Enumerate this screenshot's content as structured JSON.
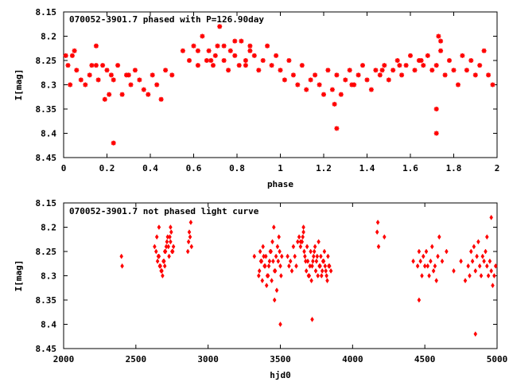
{
  "chart_data": [
    {
      "type": "scatter",
      "title": "070052-3901.7 phased with P=126.90day",
      "xlabel": "phase",
      "ylabel": "I[mag]",
      "xlim": [
        0,
        2
      ],
      "ylim": [
        8.15,
        8.45
      ],
      "y_inverted": true,
      "x_ticks": [
        0,
        0.2,
        0.4,
        0.6,
        0.8,
        1,
        1.2,
        1.4,
        1.6,
        1.8,
        2
      ],
      "x_tick_labels": [
        "0",
        "0.2",
        "0.4",
        "0.6",
        "0.8",
        "1",
        "1.2",
        "1.4",
        "1.6",
        "1.8",
        "2"
      ],
      "y_ticks": [
        8.15,
        8.2,
        8.25,
        8.3,
        8.35,
        8.4,
        8.45
      ],
      "y_tick_labels": [
        "8.15",
        "8.2",
        "8.25",
        "8.3",
        "8.35",
        "8.4",
        "8.45"
      ],
      "grid": false,
      "legend": "none",
      "marker": "star",
      "color": "#ff0000",
      "series": [
        {
          "x": [
            0.01,
            0.02,
            0.03,
            0.05,
            0.06,
            0.08,
            0.1,
            0.12,
            0.13,
            0.15,
            0.16,
            0.18,
            0.2,
            0.21,
            0.22,
            0.23,
            0.25,
            0.27,
            0.29,
            0.31,
            0.33,
            0.35,
            0.37,
            0.39,
            0.41,
            0.43,
            0.45,
            0.47,
            0.5,
            0.55,
            0.58,
            0.6,
            0.62,
            0.64,
            0.66,
            0.67,
            0.69,
            0.71,
            0.72,
            0.74,
            0.76,
            0.77,
            0.79,
            0.81,
            0.82,
            0.84,
            0.86,
            0.88,
            0.9,
            0.92,
            0.94,
            0.96,
            0.98,
            1.0,
            1.02,
            1.04,
            1.06,
            1.08,
            1.1,
            1.12,
            1.14,
            1.16,
            1.18,
            1.2,
            1.22,
            1.24,
            1.26,
            1.28,
            1.3,
            1.32,
            1.34,
            1.36,
            1.38,
            1.4,
            1.42,
            1.44,
            1.46,
            1.48,
            1.5,
            1.52,
            1.54,
            1.56,
            1.58,
            1.6,
            1.62,
            1.64,
            1.66,
            1.68,
            1.7,
            1.72,
            1.74,
            1.76,
            1.78,
            1.8,
            1.82,
            1.84,
            1.86,
            1.88,
            1.9,
            1.92,
            1.94,
            1.96,
            1.98,
            0.3,
            0.19,
            0.23,
            1.26,
            1.65,
            1.72,
            1.72,
            1.25,
            1.33,
            0.04,
            0.15,
            0.68,
            0.7,
            0.84,
            0.62,
            1.73,
            1.74,
            1.55,
            1.47,
            0.86,
            0.79,
            0.74
          ],
          "y": [
            8.24,
            8.26,
            8.3,
            8.23,
            8.27,
            8.29,
            8.3,
            8.28,
            8.26,
            8.22,
            8.29,
            8.26,
            8.27,
            8.32,
            8.28,
            8.29,
            8.26,
            8.32,
            8.28,
            8.3,
            8.27,
            8.29,
            8.31,
            8.32,
            8.28,
            8.3,
            8.33,
            8.27,
            8.28,
            8.23,
            8.25,
            8.22,
            8.26,
            8.2,
            8.25,
            8.23,
            8.26,
            8.22,
            8.18,
            8.25,
            8.27,
            8.23,
            8.24,
            8.26,
            8.21,
            8.25,
            8.23,
            8.24,
            8.27,
            8.25,
            8.22,
            8.26,
            8.24,
            8.27,
            8.29,
            8.25,
            8.28,
            8.3,
            8.26,
            8.31,
            8.29,
            8.28,
            8.3,
            8.32,
            8.27,
            8.31,
            8.28,
            8.32,
            8.29,
            8.27,
            8.3,
            8.28,
            8.26,
            8.29,
            8.31,
            8.27,
            8.28,
            8.26,
            8.29,
            8.27,
            8.25,
            8.28,
            8.26,
            8.24,
            8.27,
            8.25,
            8.26,
            8.24,
            8.27,
            8.26,
            8.23,
            8.28,
            8.25,
            8.27,
            8.3,
            8.24,
            8.27,
            8.25,
            8.28,
            8.26,
            8.23,
            8.28,
            8.3,
            8.28,
            8.33,
            8.42,
            8.39,
            8.25,
            8.35,
            8.4,
            8.34,
            8.3,
            8.24,
            8.26,
            8.25,
            8.24,
            8.26,
            8.23,
            8.2,
            8.21,
            8.26,
            8.27,
            8.22,
            8.21,
            8.22
          ]
        }
      ]
    },
    {
      "type": "scatter",
      "title": "070052-3901.7 not phased light curve",
      "xlabel": "hjd0",
      "ylabel": "I[mag]",
      "xlim": [
        2000,
        5000
      ],
      "ylim": [
        8.15,
        8.45
      ],
      "y_inverted": true,
      "x_ticks": [
        2000,
        2500,
        3000,
        3500,
        4000,
        4500,
        5000
      ],
      "x_tick_labels": [
        "2000",
        "2500",
        "3000",
        "3500",
        "4000",
        "4500",
        "5000"
      ],
      "y_ticks": [
        8.15,
        8.2,
        8.25,
        8.3,
        8.35,
        8.4,
        8.45
      ],
      "y_tick_labels": [
        "8.15",
        "8.2",
        "8.25",
        "8.3",
        "8.35",
        "8.4",
        "8.45"
      ],
      "grid": false,
      "legend": "none",
      "marker": "diamond",
      "color": "#ff0000",
      "series": [
        {
          "x": [
            2400,
            2405,
            2630,
            2640,
            2650,
            2660,
            2670,
            2680,
            2690,
            2700,
            2710,
            2720,
            2730,
            2740,
            2750,
            2760,
            2645,
            2655,
            2665,
            2675,
            2685,
            2695,
            2705,
            2715,
            2725,
            2735,
            2745,
            2755,
            2660,
            2700,
            2740,
            2860,
            2865,
            2870,
            2875,
            2880,
            2885,
            3320,
            3350,
            3360,
            3370,
            3380,
            3390,
            3400,
            3410,
            3420,
            3430,
            3440,
            3450,
            3460,
            3470,
            3480,
            3490,
            3500,
            3510,
            3355,
            3365,
            3375,
            3385,
            3395,
            3405,
            3415,
            3425,
            3435,
            3445,
            3455,
            3465,
            3475,
            3485,
            3495,
            3505,
            3500,
            3460,
            3550,
            3560,
            3570,
            3580,
            3590,
            3600,
            3610,
            3620,
            3630,
            3640,
            3650,
            3660,
            3670,
            3680,
            3690,
            3700,
            3710,
            3720,
            3730,
            3740,
            3750,
            3760,
            3770,
            3780,
            3790,
            3800,
            3810,
            3820,
            3830,
            3840,
            3850,
            3655,
            3665,
            3675,
            3685,
            3695,
            3705,
            3715,
            3725,
            3735,
            3745,
            3755,
            3765,
            3775,
            3785,
            3795,
            3805,
            3815,
            3825,
            3835,
            3720,
            3640,
            3660,
            4170,
            4175,
            4180,
            4220,
            4420,
            4450,
            4460,
            4470,
            4480,
            4490,
            4500,
            4510,
            4520,
            4530,
            4540,
            4550,
            4560,
            4570,
            4580,
            4590,
            4600,
            4620,
            4650,
            4700,
            4750,
            4780,
            4800,
            4810,
            4820,
            4830,
            4840,
            4850,
            4860,
            4870,
            4880,
            4890,
            4900,
            4910,
            4920,
            4930,
            4940,
            4950,
            4960,
            4970,
            4980,
            4990,
            4850,
            4930,
            4960,
            4460
          ],
          "y": [
            8.26,
            8.28,
            8.24,
            8.25,
            8.27,
            8.26,
            8.28,
            8.29,
            8.27,
            8.25,
            8.24,
            8.22,
            8.26,
            8.23,
            8.25,
            8.24,
            8.22,
            8.26,
            8.28,
            8.29,
            8.3,
            8.27,
            8.25,
            8.23,
            8.24,
            8.22,
            8.21,
            8.25,
            8.2,
            8.28,
            8.2,
            8.25,
            8.23,
            8.21,
            8.22,
            8.19,
            8.24,
            8.26,
            8.3,
            8.25,
            8.27,
            8.24,
            8.28,
            8.26,
            8.3,
            8.28,
            8.25,
            8.31,
            8.27,
            8.29,
            8.26,
            8.24,
            8.22,
            8.28,
            8.26,
            8.29,
            8.27,
            8.31,
            8.26,
            8.28,
            8.32,
            8.3,
            8.27,
            8.25,
            8.23,
            8.2,
            8.29,
            8.33,
            8.27,
            8.25,
            8.3,
            8.4,
            8.35,
            8.26,
            8.28,
            8.27,
            8.29,
            8.24,
            8.26,
            8.28,
            8.23,
            8.22,
            8.24,
            8.23,
            8.21,
            8.26,
            8.29,
            8.27,
            8.3,
            8.25,
            8.28,
            8.26,
            8.24,
            8.27,
            8.3,
            8.28,
            8.26,
            8.29,
            8.27,
            8.28,
            8.3,
            8.26,
            8.28,
            8.29,
            8.22,
            8.25,
            8.27,
            8.24,
            8.3,
            8.28,
            8.31,
            8.27,
            8.25,
            8.29,
            8.26,
            8.23,
            8.28,
            8.3,
            8.27,
            8.25,
            8.29,
            8.31,
            8.28,
            8.39,
            8.23,
            8.2,
            8.21,
            8.19,
            8.24,
            8.22,
            8.27,
            8.28,
            8.25,
            8.27,
            8.3,
            8.26,
            8.28,
            8.25,
            8.28,
            8.3,
            8.27,
            8.24,
            8.29,
            8.28,
            8.31,
            8.26,
            8.22,
            8.27,
            8.25,
            8.29,
            8.27,
            8.31,
            8.28,
            8.3,
            8.25,
            8.27,
            8.24,
            8.29,
            8.26,
            8.23,
            8.28,
            8.3,
            8.26,
            8.27,
            8.25,
            8.28,
            8.3,
            8.27,
            8.29,
            8.32,
            8.3,
            8.28,
            8.42,
            8.22,
            8.18,
            8.35
          ]
        }
      ]
    }
  ]
}
